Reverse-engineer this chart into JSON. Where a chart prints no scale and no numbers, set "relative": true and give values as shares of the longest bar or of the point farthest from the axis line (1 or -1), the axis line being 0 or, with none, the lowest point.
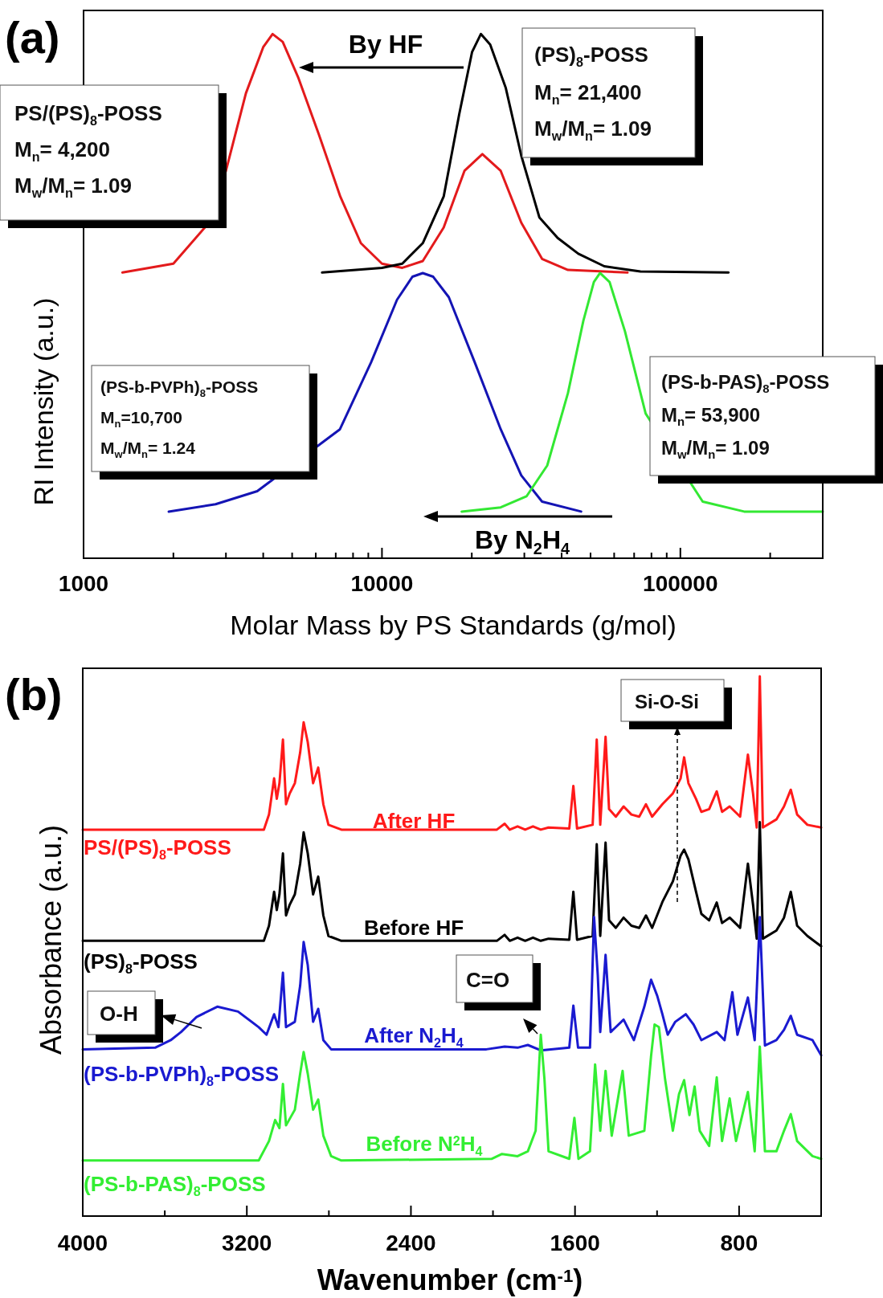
{
  "chart_data": [
    {
      "type": "line",
      "relative": true,
      "log": "x",
      "xlabel": "Molar Mass by PS Standards (g/mol)",
      "ylabel": "RI Intensity (a.u.)",
      "xlim": [
        1000,
        300000
      ],
      "xticks": [
        1000,
        {
          "value": 2000,
          "label": null
        },
        {
          "value": 3000,
          "label": null
        },
        {
          "value": 4000,
          "label": null
        },
        {
          "value": 5000,
          "label": null
        },
        {
          "value": 6000,
          "label": null
        },
        {
          "value": 7000,
          "label": null
        },
        {
          "value": 8000,
          "label": null
        },
        {
          "value": 9000,
          "label": null
        },
        10000,
        {
          "value": 20000,
          "label": null
        },
        {
          "value": 30000,
          "label": null
        },
        {
          "value": 40000,
          "label": null
        },
        {
          "value": 50000,
          "label": null
        },
        {
          "value": 60000,
          "label": null
        },
        {
          "value": 70000,
          "label": null
        },
        {
          "value": 80000,
          "label": null
        },
        {
          "value": 90000,
          "label": null
        },
        100000,
        {
          "value": 200000,
          "label": null
        }
      ],
      "series": [
        {
          "color": "#e31a1c",
          "x": [
            1350,
            2000,
            2550,
            3000,
            3500,
            4000,
            4300,
            4650,
            5250,
            6150,
            7250,
            8500,
            10000,
            11700,
            13700,
            16100,
            18900,
            21700,
            25000,
            29300,
            34400,
            42000,
            66500
          ],
          "values": [
            0.545,
            0.562,
            0.631,
            0.739,
            0.887,
            0.975,
            1.0,
            0.985,
            0.916,
            0.808,
            0.69,
            0.601,
            0.562,
            0.554,
            0.567,
            0.631,
            0.739,
            0.771,
            0.739,
            0.64,
            0.571,
            0.55,
            0.545
          ]
        },
        {
          "color": "#000000",
          "x": [
            6300,
            10000,
            11700,
            13700,
            16100,
            18150,
            20050,
            21450,
            23050,
            26000,
            29300,
            33700,
            38800,
            45500,
            55600,
            73500,
            145000
          ],
          "values": [
            0.545,
            0.554,
            0.562,
            0.601,
            0.69,
            0.847,
            0.966,
            1.0,
            0.98,
            0.897,
            0.768,
            0.65,
            0.611,
            0.581,
            0.557,
            0.547,
            0.545
          ]
        },
        {
          "color": "#1414b4",
          "x": [
            1930,
            2770,
            3820,
            7230,
            9200,
            11230,
            12650,
            13700,
            14850,
            16750,
            20450,
            25000,
            29300,
            34400,
            46500
          ],
          "values": [
            0.089,
            0.103,
            0.128,
            0.246,
            0.374,
            0.493,
            0.537,
            0.544,
            0.537,
            0.498,
            0.374,
            0.246,
            0.158,
            0.108,
            0.089
          ]
        },
        {
          "color": "#33e833",
          "x": [
            18500,
            25000,
            30500,
            35800,
            42000,
            47300,
            51300,
            53800,
            57900,
            65200,
            76500,
            118800,
            163600,
            300000
          ],
          "values": [
            0.089,
            0.097,
            0.118,
            0.177,
            0.315,
            0.453,
            0.527,
            0.544,
            0.527,
            0.433,
            0.276,
            0.108,
            0.089,
            0.089
          ]
        }
      ],
      "annotations": [
        "(a)",
        "By HF",
        "PS/(PS)$_{8}$-POSS\nM$_{n}$= 4,200\nM$_{w}$/M$_{n}$= 1.09",
        "(PS)$_{8}$-POSS\nM$_{n}$= 21,400\nM$_{w}$/M$_{n}$= 1.09",
        "(PS-b-PVPh)$_{8}$-POSS\nM$_{n}$=10,700\nM$_{w}$/M$_{n}$= 1.24",
        "(PS-b-PAS)$_{8}$-POSS\nM$_{n}$= 53,900\nM$_{w}$/M$_{n}$= 1.09",
        "By N$_{2}$H$_{4}$"
      ]
    },
    {
      "type": "line",
      "relative": true,
      "xlabel": "Wavenumber (cm$^{-1}$)",
      "ylabel": "Absorbance (a.u.)",
      "xlim": [
        4000,
        400
      ],
      "xticks": [
        4000,
        {
          "value": 3600,
          "label": null
        },
        3200,
        {
          "value": 2800,
          "label": null
        },
        2400,
        {
          "value": 2000,
          "label": null
        },
        1600,
        {
          "value": 1200,
          "label": null
        },
        800
      ],
      "series": [
        {
          "color": "#ff1a1a",
          "x": [
            4000,
            3117,
            3092,
            3067,
            3054,
            3041,
            3024,
            3009,
            2991,
            2966,
            2940,
            2923,
            2903,
            2877,
            2852,
            2827,
            2802,
            2739,
            1981,
            1943,
            1918,
            1880,
            1843,
            1805,
            1767,
            1729,
            1628,
            1608,
            1590,
            1514,
            1494,
            1477,
            1451,
            1434,
            1401,
            1363,
            1325,
            1287,
            1254,
            1224,
            1174,
            1123,
            1085,
            1068,
            1047,
            1010,
            984,
            946,
            909,
            883,
            846,
            795,
            757,
            732,
            714,
            699,
            684,
            618,
            581,
            548,
            517,
            467,
            400
          ],
          "values": [
            0.716,
            0.716,
            0.744,
            0.811,
            0.773,
            0.802,
            0.883,
            0.763,
            0.783,
            0.802,
            0.859,
            0.915,
            0.878,
            0.802,
            0.831,
            0.763,
            0.725,
            0.716,
            0.716,
            0.727,
            0.716,
            0.722,
            0.716,
            0.722,
            0.716,
            0.72,
            0.718,
            0.797,
            0.718,
            0.725,
            0.883,
            0.725,
            0.888,
            0.754,
            0.74,
            0.759,
            0.744,
            0.74,
            0.763,
            0.74,
            0.763,
            0.783,
            0.811,
            0.85,
            0.802,
            0.773,
            0.749,
            0.754,
            0.787,
            0.749,
            0.759,
            0.74,
            0.855,
            0.783,
            0.72,
            1.0,
            0.72,
            0.735,
            0.759,
            0.79,
            0.744,
            0.725,
            0.72
          ]
        },
        {
          "color": "#000000",
          "x": [
            4000,
            3117,
            3092,
            3067,
            3054,
            3041,
            3024,
            3009,
            2991,
            2966,
            2940,
            2923,
            2903,
            2877,
            2852,
            2827,
            2802,
            2739,
            1981,
            1943,
            1918,
            1880,
            1843,
            1805,
            1767,
            1729,
            1628,
            1608,
            1590,
            1514,
            1494,
            1477,
            1451,
            1434,
            1401,
            1363,
            1325,
            1287,
            1254,
            1224,
            1174,
            1123,
            1085,
            1068,
            1047,
            1010,
            984,
            946,
            909,
            883,
            846,
            795,
            757,
            732,
            714,
            699,
            684,
            618,
            581,
            548,
            517,
            467,
            400
          ],
          "values": [
            0.51,
            0.51,
            0.538,
            0.601,
            0.567,
            0.596,
            0.672,
            0.557,
            0.577,
            0.596,
            0.653,
            0.711,
            0.672,
            0.596,
            0.629,
            0.557,
            0.519,
            0.51,
            0.51,
            0.521,
            0.51,
            0.516,
            0.51,
            0.516,
            0.51,
            0.514,
            0.512,
            0.601,
            0.512,
            0.519,
            0.689,
            0.519,
            0.692,
            0.548,
            0.534,
            0.553,
            0.538,
            0.534,
            0.557,
            0.534,
            0.582,
            0.62,
            0.668,
            0.679,
            0.661,
            0.601,
            0.56,
            0.548,
            0.581,
            0.543,
            0.553,
            0.534,
            0.653,
            0.577,
            0.514,
            0.73,
            0.514,
            0.529,
            0.553,
            0.601,
            0.538,
            0.519,
            0.5
          ]
        },
        {
          "color": "#1a1ad0",
          "x": [
            4000,
            3647,
            3571,
            3521,
            3445,
            3344,
            3243,
            3142,
            3104,
            3067,
            3046,
            3024,
            3009,
            2966,
            2940,
            2923,
            2903,
            2877,
            2852,
            2827,
            2789,
            2032,
            1943,
            1880,
            1830,
            1767,
            1628,
            1608,
            1585,
            1527,
            1507,
            1489,
            1477,
            1451,
            1426,
            1363,
            1313,
            1262,
            1229,
            1199,
            1174,
            1148,
            1111,
            1060,
            1022,
            984,
            909,
            871,
            833,
            808,
            757,
            724,
            699,
            674,
            618,
            581,
            548,
            517,
            442,
            400
          ],
          "values": [
            0.309,
            0.312,
            0.326,
            0.341,
            0.369,
            0.388,
            0.379,
            0.35,
            0.336,
            0.374,
            0.35,
            0.451,
            0.35,
            0.36,
            0.427,
            0.508,
            0.465,
            0.36,
            0.384,
            0.326,
            0.309,
            0.309,
            0.314,
            0.312,
            0.317,
            0.307,
            0.312,
            0.39,
            0.312,
            0.312,
            0.554,
            0.446,
            0.341,
            0.484,
            0.341,
            0.364,
            0.326,
            0.388,
            0.438,
            0.408,
            0.374,
            0.336,
            0.36,
            0.374,
            0.355,
            0.326,
            0.341,
            0.326,
            0.415,
            0.336,
            0.405,
            0.326,
            0.554,
            0.316,
            0.326,
            0.345,
            0.371,
            0.336,
            0.326,
            0.298
          ]
        },
        {
          "color": "#33ee33",
          "x": [
            4000,
            3142,
            3092,
            3062,
            3041,
            3024,
            3009,
            2966,
            2940,
            2923,
            2903,
            2877,
            2852,
            2827,
            2789,
            2739,
            2007,
            1956,
            1880,
            1830,
            1792,
            1767,
            1749,
            1729,
            1628,
            1603,
            1583,
            1527,
            1502,
            1477,
            1451,
            1421,
            1368,
            1338,
            1262,
            1229,
            1212,
            1191,
            1161,
            1123,
            1093,
            1068,
            1042,
            1017,
            992,
            946,
            909,
            883,
            846,
            815,
            757,
            724,
            699,
            674,
            618,
            581,
            548,
            517,
            442,
            400
          ],
          "values": [
            0.103,
            0.103,
            0.139,
            0.178,
            0.163,
            0.245,
            0.168,
            0.197,
            0.264,
            0.304,
            0.264,
            0.197,
            0.216,
            0.149,
            0.111,
            0.103,
            0.106,
            0.115,
            0.111,
            0.12,
            0.158,
            0.336,
            0.254,
            0.12,
            0.106,
            0.182,
            0.106,
            0.12,
            0.281,
            0.158,
            0.269,
            0.149,
            0.269,
            0.149,
            0.158,
            0.297,
            0.355,
            0.35,
            0.254,
            0.158,
            0.226,
            0.252,
            0.187,
            0.24,
            0.158,
            0.13,
            0.257,
            0.139,
            0.218,
            0.139,
            0.23,
            0.12,
            0.314,
            0.12,
            0.12,
            0.158,
            0.189,
            0.139,
            0.111,
            0.106
          ]
        }
      ],
      "annotations": [
        "(b)",
        "Si-O-Si",
        "After HF",
        "PS/(PS)$_{8}$-POSS",
        "Before HF",
        "(PS)$_{8}$-POSS",
        "O-H",
        "C=O",
        "After N$_{2}$H$_{4}$",
        "(PS-b-PVPh)$_{8}$-POSS",
        "Before N$^{2}$H$_{4}$",
        "(PS-b-PAS)$_{8}$-POSS"
      ]
    }
  ]
}
